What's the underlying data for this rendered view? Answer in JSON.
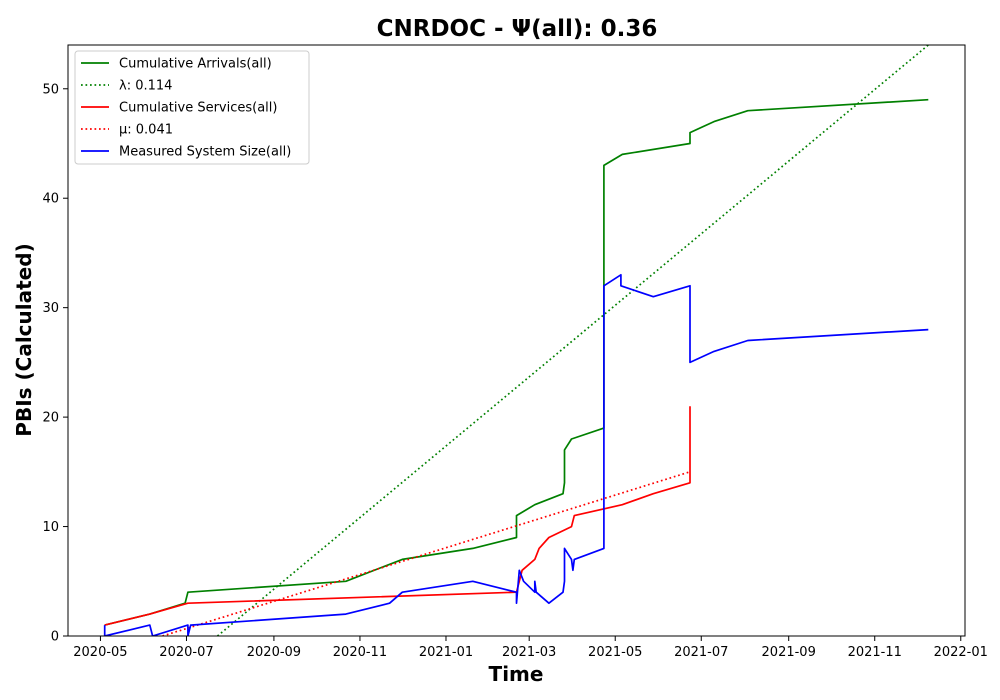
{
  "chart_data": {
    "type": "line",
    "title": "CNRDOC -  Ψ(all): 0.36",
    "xlabel": "Time",
    "ylabel": "PBIs (Calculated)",
    "xlim": [
      "2020-04-08",
      "2022-01-04"
    ],
    "ylim": [
      0,
      54
    ],
    "x_ticks": [
      "2020-05",
      "2020-07",
      "2020-09",
      "2020-11",
      "2021-01",
      "2021-03",
      "2021-05",
      "2021-07",
      "2021-09",
      "2021-11",
      "2022-01"
    ],
    "y_ticks": [
      0,
      10,
      20,
      30,
      40,
      50
    ],
    "legend_position": "top-left",
    "grid": false,
    "series": [
      {
        "name": "Cumulative Arrivals(all)",
        "color": "#008000",
        "style": "solid",
        "points": [
          [
            "2020-05-04",
            1
          ],
          [
            "2020-06-05",
            2
          ],
          [
            "2020-06-30",
            3
          ],
          [
            "2020-07-02",
            4
          ],
          [
            "2020-10-22",
            5
          ],
          [
            "2020-12-01",
            7
          ],
          [
            "2021-01-20",
            8
          ],
          [
            "2021-02-20",
            9
          ],
          [
            "2021-02-20",
            11
          ],
          [
            "2021-03-05",
            12
          ],
          [
            "2021-03-25",
            13
          ],
          [
            "2021-03-26",
            14
          ],
          [
            "2021-03-26",
            17
          ],
          [
            "2021-03-31",
            18
          ],
          [
            "2021-04-23",
            19
          ],
          [
            "2021-04-23",
            43
          ],
          [
            "2021-05-06",
            44
          ],
          [
            "2021-06-23",
            45
          ],
          [
            "2021-06-23",
            46
          ],
          [
            "2021-07-10",
            47
          ],
          [
            "2021-08-03",
            48
          ],
          [
            "2021-12-09",
            49
          ]
        ]
      },
      {
        "name": "λ: 0.114",
        "color": "#008000",
        "style": "dotted",
        "points": [
          [
            "2020-07-23",
            0
          ],
          [
            "2021-12-09",
            54
          ]
        ]
      },
      {
        "name": "Cumulative Services(all)",
        "color": "#ff0000",
        "style": "solid",
        "points": [
          [
            "2020-05-04",
            1
          ],
          [
            "2020-06-05",
            2
          ],
          [
            "2020-07-02",
            3
          ],
          [
            "2021-02-20",
            4
          ],
          [
            "2021-02-22",
            5
          ],
          [
            "2021-02-24",
            6
          ],
          [
            "2021-03-05",
            7
          ],
          [
            "2021-03-08",
            8
          ],
          [
            "2021-03-15",
            9
          ],
          [
            "2021-03-31",
            10
          ],
          [
            "2021-04-02",
            11
          ],
          [
            "2021-05-06",
            12
          ],
          [
            "2021-05-28",
            13
          ],
          [
            "2021-06-23",
            14
          ],
          [
            "2021-06-23",
            21
          ]
        ]
      },
      {
        "name": "μ: 0.041",
        "color": "#ff0000",
        "style": "dotted",
        "points": [
          [
            "2020-06-14",
            0
          ],
          [
            "2021-06-23",
            15
          ]
        ]
      },
      {
        "name": "Measured System Size(all)",
        "color": "#0000ff",
        "style": "solid",
        "points": [
          [
            "2020-05-04",
            1
          ],
          [
            "2020-05-04",
            0
          ],
          [
            "2020-06-05",
            1
          ],
          [
            "2020-06-07",
            0
          ],
          [
            "2020-07-02",
            1
          ],
          [
            "2020-07-02",
            0
          ],
          [
            "2020-07-04",
            1
          ],
          [
            "2020-10-22",
            2
          ],
          [
            "2020-11-22",
            3
          ],
          [
            "2020-12-01",
            4
          ],
          [
            "2021-01-20",
            5
          ],
          [
            "2021-02-20",
            4
          ],
          [
            "2021-02-20",
            3
          ],
          [
            "2021-02-22",
            6
          ],
          [
            "2021-02-25",
            5
          ],
          [
            "2021-03-05",
            4
          ],
          [
            "2021-03-05",
            5
          ],
          [
            "2021-03-06",
            4
          ],
          [
            "2021-03-15",
            3
          ],
          [
            "2021-03-25",
            4
          ],
          [
            "2021-03-26",
            5
          ],
          [
            "2021-03-26",
            8
          ],
          [
            "2021-03-31",
            7
          ],
          [
            "2021-04-01",
            6
          ],
          [
            "2021-04-02",
            7
          ],
          [
            "2021-04-23",
            8
          ],
          [
            "2021-04-23",
            32
          ],
          [
            "2021-05-05",
            33
          ],
          [
            "2021-05-05",
            32
          ],
          [
            "2021-05-28",
            31
          ],
          [
            "2021-06-23",
            32
          ],
          [
            "2021-06-23",
            25
          ],
          [
            "2021-07-10",
            26
          ],
          [
            "2021-08-03",
            27
          ],
          [
            "2021-12-09",
            28
          ]
        ]
      }
    ]
  }
}
